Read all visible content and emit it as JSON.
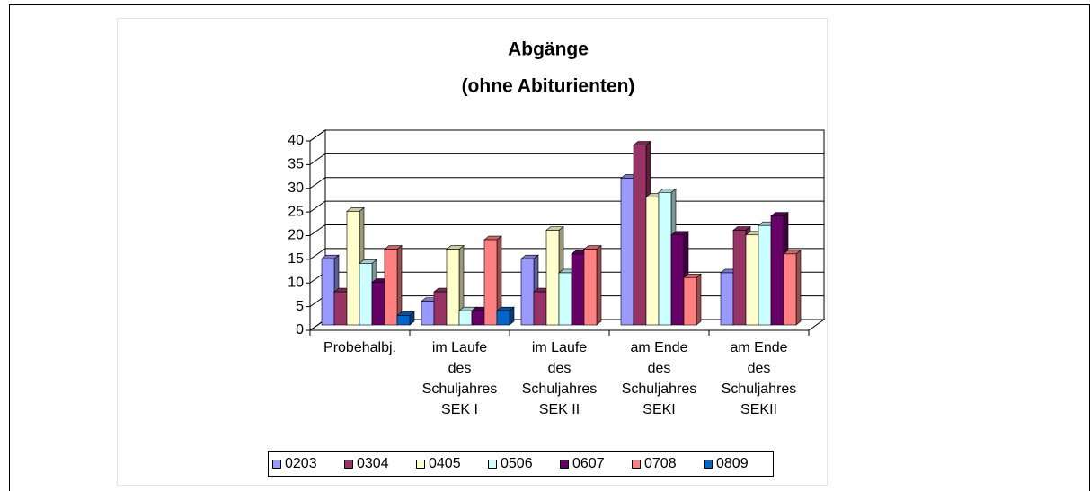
{
  "chart_data": {
    "type": "bar3d",
    "title": "Abgänge",
    "subtitle": "(ohne Abiturienten)",
    "categories": [
      "Probehalbj.",
      "im Laufe\ndes\nSchuljahres\nSEK I",
      "im Laufe\ndes\nSchuljahres\nSEK II",
      "am Ende\ndes\nSchuljahres\nSEKI",
      "am Ende\ndes\nSchuljahres\nSEKII"
    ],
    "series": [
      {
        "name": "0203",
        "color": "#9999ff",
        "values": [
          14,
          5,
          14,
          31,
          11
        ]
      },
      {
        "name": "0304",
        "color": "#993366",
        "values": [
          7,
          7,
          7,
          38,
          20
        ]
      },
      {
        "name": "0405",
        "color": "#ffffcc",
        "values": [
          24,
          16,
          20,
          27,
          19
        ]
      },
      {
        "name": "0506",
        "color": "#ccffff",
        "values": [
          13,
          3,
          11,
          28,
          21
        ]
      },
      {
        "name": "0607",
        "color": "#660066",
        "values": [
          9,
          3,
          15,
          19,
          23
        ]
      },
      {
        "name": "0708",
        "color": "#ff8080",
        "values": [
          16,
          18,
          16,
          10,
          15
        ]
      },
      {
        "name": "0809",
        "color": "#0066cc",
        "values": [
          2,
          3,
          null,
          null,
          null
        ]
      }
    ],
    "ylim": [
      0,
      40
    ],
    "yticks": [
      0,
      5,
      10,
      15,
      20,
      25,
      30,
      35,
      40
    ],
    "grid": true,
    "legend": "bottom"
  }
}
